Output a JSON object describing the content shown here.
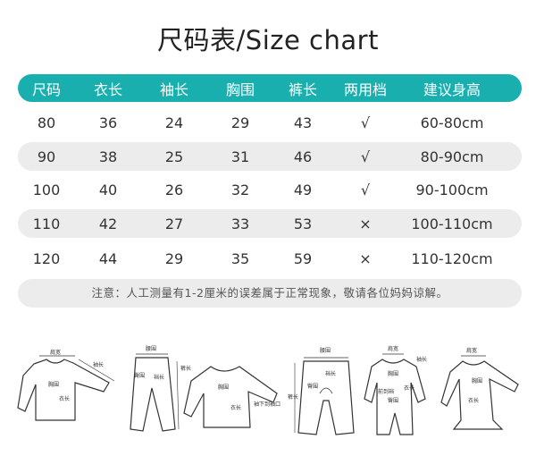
{
  "title": "尺码表/Size chart",
  "table": {
    "headers": [
      "尺码",
      "衣长",
      "袖长",
      "胸围",
      "裤长",
      "两用档",
      "建议身高"
    ],
    "rows": [
      [
        "80",
        "36",
        "24",
        "29",
        "43",
        "√",
        "60-80cm"
      ],
      [
        "90",
        "38",
        "25",
        "31",
        "46",
        "√",
        "80-90cm"
      ],
      [
        "100",
        "40",
        "26",
        "32",
        "49",
        "√",
        "90-100cm"
      ],
      [
        "110",
        "42",
        "27",
        "33",
        "53",
        "×",
        "100-110cm"
      ],
      [
        "120",
        "44",
        "29",
        "35",
        "59",
        "×",
        "110-120cm"
      ]
    ]
  },
  "note": "注意：人工测量有1-2厘米的误差属于正常现象，敬请各位妈妈谅解。",
  "colors": {
    "header": "#1aafaf",
    "band": "#ececec"
  },
  "diagram_labels": {
    "top": [
      "肩宽",
      "袖长",
      "胸围",
      "衣长"
    ],
    "pants": [
      "腰围",
      "臀围",
      "裆长",
      "裤长"
    ],
    "raglan": [
      "胸围",
      "衣长",
      "袖下到袖口"
    ],
    "open_pants": [
      "腰围",
      "裆长",
      "臀围",
      "裤长"
    ],
    "romper": [
      "肩宽",
      "袖长",
      "胸围",
      "前到裆",
      "臀围",
      "衣长"
    ],
    "dress": [
      "肩宽",
      "胸围",
      "衣长"
    ]
  }
}
